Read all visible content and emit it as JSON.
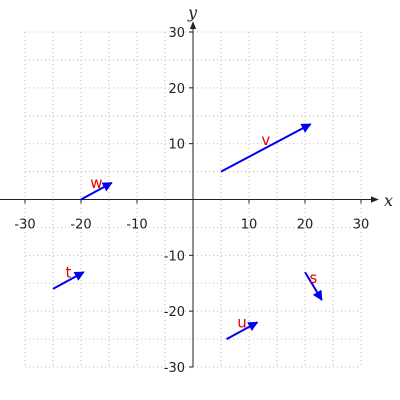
{
  "chart_data": {
    "type": "vector",
    "xlabel": "x",
    "ylabel": "y",
    "xlim": [
      -30,
      30
    ],
    "ylim": [
      -30,
      30
    ],
    "xticks": [
      -30,
      -20,
      -10,
      10,
      20,
      30
    ],
    "yticks": [
      -30,
      -20,
      -10,
      10,
      20,
      30
    ],
    "x_minor_ticks": [
      -30,
      -25,
      -20,
      -15,
      -10,
      -5,
      0,
      5,
      10,
      15,
      20,
      25,
      30
    ],
    "y_minor_ticks": [
      -30,
      -25,
      -20,
      -15,
      -10,
      -5,
      0,
      5,
      10,
      15,
      20,
      25,
      30
    ],
    "grid": true,
    "color": "#0000ee",
    "label_color": "#e00000",
    "vectors": [
      {
        "name": "v",
        "start": [
          5,
          5
        ],
        "end": [
          21,
          13.5
        ]
      },
      {
        "name": "w",
        "start": [
          -20,
          0
        ],
        "end": [
          -14.5,
          3
        ]
      },
      {
        "name": "t",
        "start": [
          -25,
          -16
        ],
        "end": [
          -19.5,
          -13
        ]
      },
      {
        "name": "u",
        "start": [
          6,
          -25
        ],
        "end": [
          11.5,
          -22
        ]
      },
      {
        "name": "s",
        "start": [
          20,
          -13
        ],
        "end": [
          23,
          -18
        ]
      }
    ]
  }
}
